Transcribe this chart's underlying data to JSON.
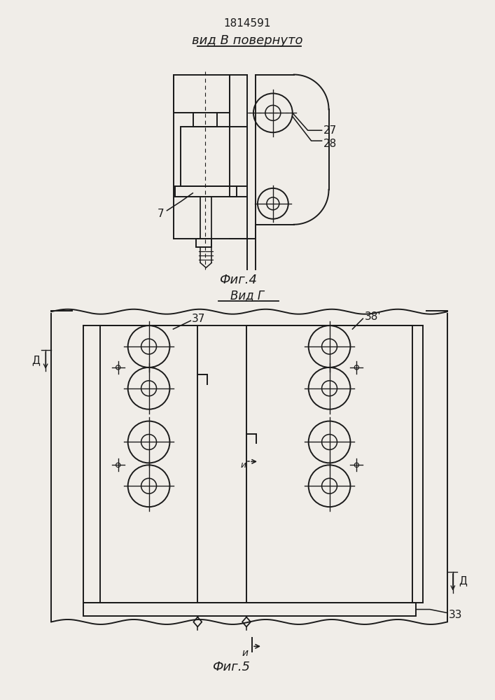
{
  "title": "1814591",
  "fig4_label": "вид В повернуто",
  "fig4_caption": "Фиг.4",
  "fig5_label": "Вид Г",
  "fig5_caption": "Фиг.5",
  "label_27": "27",
  "label_28": "28",
  "label_7": "7",
  "label_33": "33",
  "label_37": "37",
  "label_38": "38'",
  "label_D": "Д",
  "label_N": "и",
  "bg_color": "#f0ede8",
  "line_color": "#1a1a1a"
}
